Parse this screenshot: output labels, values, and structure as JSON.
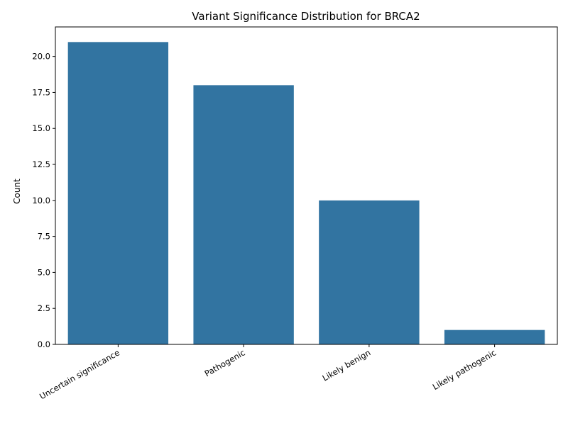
{
  "chart_data": {
    "type": "bar",
    "title": "Variant Significance Distribution for BRCA2",
    "xlabel": "",
    "ylabel": "Count",
    "categories": [
      "Uncertain significance",
      "Pathogenic",
      "Likely benign",
      "Likely pathogenic"
    ],
    "values": [
      21,
      18,
      10,
      1
    ],
    "ylim": [
      0,
      22.05
    ],
    "yticks": [
      0.0,
      2.5,
      5.0,
      7.5,
      10.0,
      12.5,
      15.0,
      17.5,
      20.0
    ],
    "ytick_labels": [
      "0.0",
      "2.5",
      "5.0",
      "7.5",
      "10.0",
      "12.5",
      "15.0",
      "17.5",
      "20.0"
    ],
    "grid": false,
    "legend": "none",
    "bar_color": "#3274a1",
    "xtick_rotation_deg": 30
  }
}
